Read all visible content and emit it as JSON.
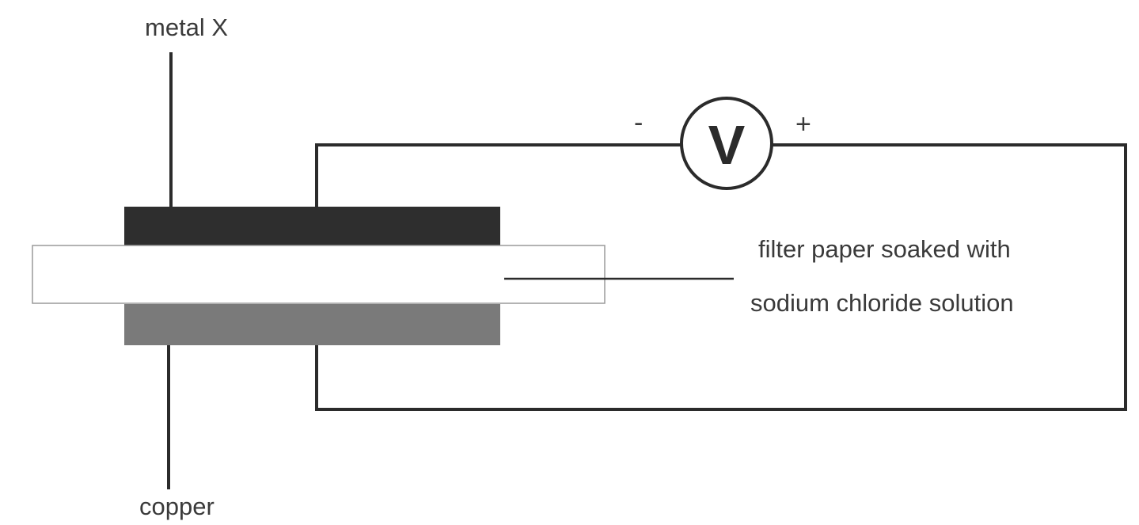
{
  "diagram": {
    "labels": {
      "metal_top": "metal X",
      "metal_bottom": "copper",
      "paper_line1": "filter paper soaked with",
      "paper_line2": "sodium chloride solution"
    },
    "voltmeter": {
      "symbol": "V",
      "negative": "-",
      "positive": "+"
    },
    "colors": {
      "metal_x": "#2e2e2e",
      "copper": "#7a7a7a",
      "filter_paper": "#ffffff",
      "wire": "#2b2b2b"
    }
  }
}
